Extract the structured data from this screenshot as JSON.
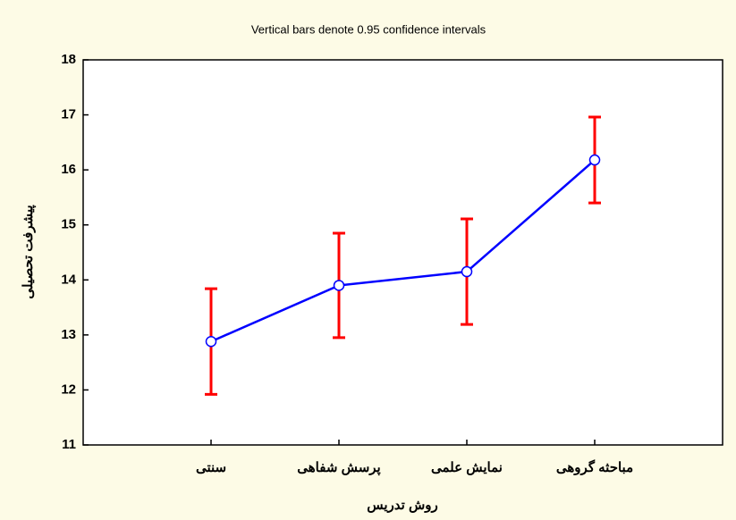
{
  "chart_data": {
    "type": "line",
    "title": "Vertical bars denote 0.95 confidence intervals",
    "xlabel": "روش تدریس",
    "ylabel": "پیشرفت تحصیلی",
    "categories": [
      "سنتی",
      "پرسش شفاهی",
      "نمایش علمی",
      "مباحثه گروهی"
    ],
    "values": [
      12.88,
      13.9,
      14.15,
      16.18
    ],
    "errors": [
      0.96,
      0.95,
      0.96,
      0.78
    ],
    "color": "#0000ff",
    "error_color": "#ff0000",
    "ylim": [
      11,
      18
    ],
    "yticks": [
      11,
      12,
      13,
      14,
      15,
      16,
      17,
      18
    ]
  }
}
